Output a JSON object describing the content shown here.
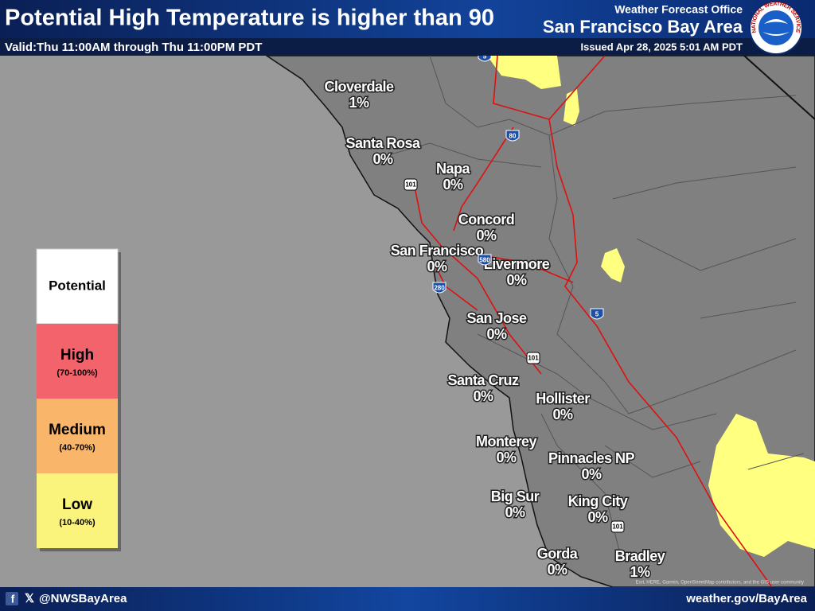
{
  "header": {
    "title": "Potential High Temperature is higher than 90",
    "valid": "Valid:Thu 11:00AM through Thu 11:00PM PDT",
    "office": "Weather Forecast Office",
    "area": "San Francisco Bay Area",
    "issued": "Issued Apr 28, 2025 5:01 AM PDT"
  },
  "logo": {
    "text": "NATIONAL WEATHER SERVICE"
  },
  "legend": {
    "title": "Potential",
    "items": [
      {
        "label": "High",
        "range": "(70-100%)",
        "color": "#f2636b"
      },
      {
        "label": "Medium",
        "range": "(40-70%)",
        "color": "#f9b56a"
      },
      {
        "label": "Low",
        "range": "(10-40%)",
        "color": "#fbf47c"
      }
    ]
  },
  "places": [
    {
      "name": "Cloverdale",
      "value": "1%"
    },
    {
      "name": "Santa Rosa",
      "value": "0%"
    },
    {
      "name": "Napa",
      "value": "0%"
    },
    {
      "name": "Concord",
      "value": "0%"
    },
    {
      "name": "San Francisco",
      "value": "0%"
    },
    {
      "name": "Livermore",
      "value": "0%"
    },
    {
      "name": "San Jose",
      "value": "0%"
    },
    {
      "name": "Santa Cruz",
      "value": "0%"
    },
    {
      "name": "Hollister",
      "value": "0%"
    },
    {
      "name": "Monterey",
      "value": "0%"
    },
    {
      "name": "Pinnacles NP",
      "value": "0%"
    },
    {
      "name": "Big Sur",
      "value": "0%"
    },
    {
      "name": "King City",
      "value": "0%"
    },
    {
      "name": "Gorda",
      "value": "0%"
    },
    {
      "name": "Bradley",
      "value": "1%"
    }
  ],
  "highways": [
    "5",
    "80",
    "101",
    "580",
    "280",
    "5",
    "101",
    "101"
  ],
  "attribution": "Esri, HERE, Garmin, OpenStreetMap contributors, and the GIS user community",
  "footer": {
    "handle": "@NWSBayArea",
    "url": "weather.gov/BayArea"
  }
}
